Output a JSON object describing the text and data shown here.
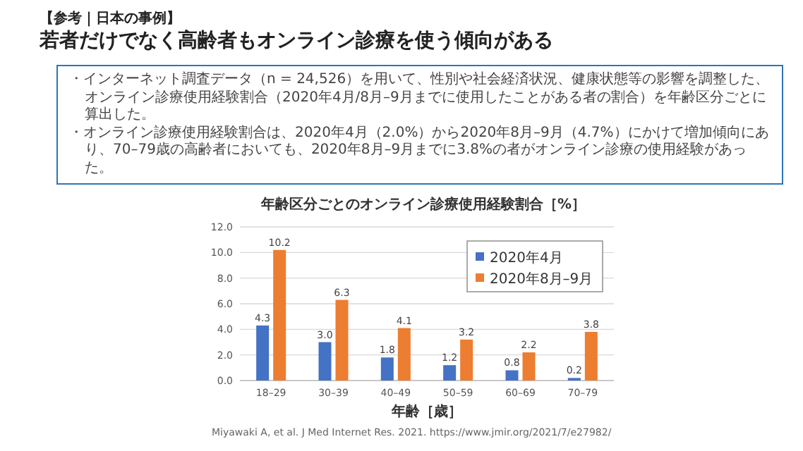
{
  "chart_data": {
    "type": "bar",
    "title": "年齢区分ごとのオンライン診療使用経験割合［%］",
    "xlabel": "年齢［歳］",
    "categories": [
      "18–29",
      "30–39",
      "40–49",
      "50–59",
      "60–69",
      "70–79"
    ],
    "series": [
      {
        "name": "2020年4月",
        "color": "#4472c4",
        "values": [
          4.3,
          3.0,
          1.8,
          1.2,
          0.8,
          0.2
        ],
        "value_labels": [
          "4.3",
          "3.0",
          "1.8",
          "1.2",
          "0.8",
          "0.2"
        ]
      },
      {
        "name": "2020年8月–9月",
        "color": "#ed7d31",
        "values": [
          10.2,
          6.3,
          4.1,
          3.2,
          2.2,
          3.8
        ],
        "value_labels": [
          "10.2",
          "6.3",
          "4.1",
          "3.2",
          "2.2",
          "3.8"
        ]
      }
    ],
    "ylim": [
      0,
      12
    ],
    "yticks": [
      {
        "value": 0,
        "label": "0.0"
      },
      {
        "value": 2,
        "label": "2.0"
      },
      {
        "value": 4,
        "label": "4.0"
      },
      {
        "value": 6,
        "label": "6.0"
      },
      {
        "value": 8,
        "label": "8.0"
      },
      {
        "value": 10,
        "label": "10.0"
      },
      {
        "value": 12,
        "label": "12.0"
      }
    ],
    "grid": "y",
    "legend": "top right",
    "annotations": [
      "【参考｜日本の事例】",
      "若者だけでなく高齢者もオンライン診療を使う傾向がある",
      "・インターネット調査データ（n = 24,526）を用いて、性別や社会経済状況、健康状態等の影響を調整した、オンライン診療使用経験割合（2020年4月/8月–9月までに使用したことがある者の割合）を年齢区分ごとに算出した。",
      "・オンライン診療使用経験割合は、2020年4月（2.0%）から2020年8月–9月（4.7%）にかけて増加傾向にあり、70–79歳の高齢者においても、2020年8月–9月までに3.8%の者がオンライン診療の使用経験があった。",
      "Miyawaki A, et al. J Med Internet Res. 2021. https://www.jmir.org/2021/7/e27982/"
    ]
  }
}
